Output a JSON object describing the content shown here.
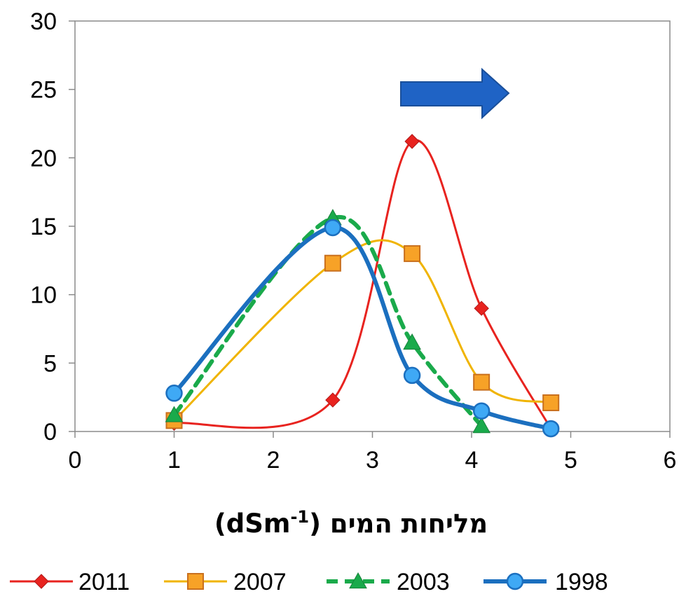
{
  "chart_data": {
    "type": "line",
    "title": "",
    "xlabel": "מליחות המים (dSm",
    "xlabel_superscript": "-1",
    "xlabel_close": ")",
    "ylabel": "",
    "xlim": [
      0,
      6
    ],
    "ylim": [
      0,
      30
    ],
    "x_ticks": [
      "0",
      "1",
      "2",
      "3",
      "4",
      "5",
      "6"
    ],
    "y_ticks": [
      "0",
      "5",
      "10",
      "15",
      "20",
      "25",
      "30"
    ],
    "grid": false,
    "smooth": true,
    "legend_position": "bottom",
    "series": [
      {
        "name": "2011",
        "color": "#e8231f",
        "marker": "diamond",
        "dash": "solid",
        "x": [
          1,
          2.6,
          3.4,
          4.1,
          4.8
        ],
        "y": [
          0.6,
          2.3,
          21.2,
          9.0,
          0.2
        ]
      },
      {
        "name": "2007",
        "color": "#f0b400",
        "marker_color": "#f7a227",
        "marker_stroke": "#c9701e",
        "marker": "square",
        "dash": "solid",
        "x": [
          1,
          2.6,
          3.4,
          4.1,
          4.8
        ],
        "y": [
          0.8,
          12.3,
          13.0,
          3.6,
          2.1
        ]
      },
      {
        "name": "2003",
        "color": "#1aaa4b",
        "marker": "triangle",
        "dash": "dashed",
        "x": [
          1,
          2.6,
          3.4,
          4.1
        ],
        "y": [
          1.2,
          15.6,
          6.5,
          0.4
        ]
      },
      {
        "name": "1998",
        "color": "#1b6fbf",
        "marker_color": "#3fa9f5",
        "marker": "circle",
        "dash": "solid",
        "x": [
          1,
          2.6,
          3.4,
          4.1,
          4.8
        ],
        "y": [
          2.8,
          14.9,
          4.1,
          1.5,
          0.2
        ]
      }
    ],
    "annotation": {
      "shape": "arrow-right",
      "color": "#1f63c5",
      "stroke": "#1a4f9a"
    }
  }
}
